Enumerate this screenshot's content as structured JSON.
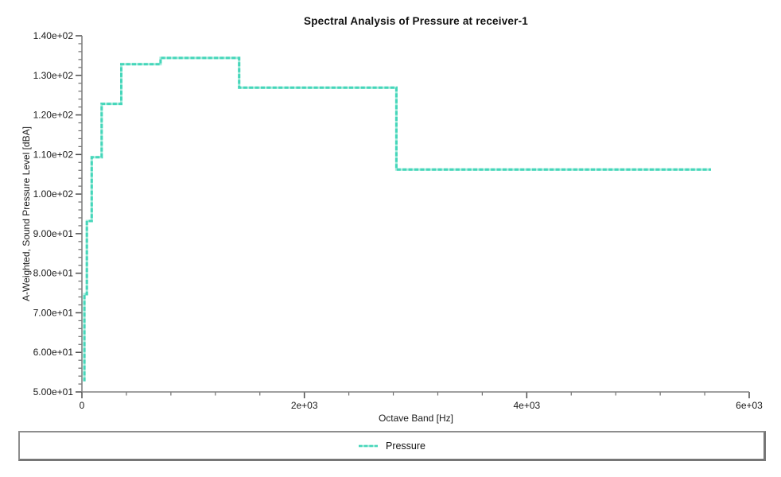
{
  "chart_data": {
    "type": "step",
    "title": "Spectral Analysis of Pressure at receiver-1",
    "xlabel": "Octave Band [Hz]",
    "ylabel": "A-Weighted, Sound Pressure Level [dBA]",
    "xlim": [
      0,
      6000
    ],
    "ylim": [
      50,
      140
    ],
    "grid": false,
    "legend_position": "bottom",
    "axis_color": "#808080",
    "major_tick_color": "#4d4d4d",
    "minor_tick_color": "#6f6f6f",
    "x_major_ticks": [
      {
        "value": 0,
        "label": "0"
      },
      {
        "value": 2000,
        "label": "2e+03"
      },
      {
        "value": 4000,
        "label": "4e+03"
      },
      {
        "value": 6000,
        "label": "6e+03"
      }
    ],
    "y_major_ticks": [
      {
        "value": 50,
        "label": "5.00e+01"
      },
      {
        "value": 60,
        "label": "6.00e+01"
      },
      {
        "value": 70,
        "label": "7.00e+01"
      },
      {
        "value": 80,
        "label": "8.00e+01"
      },
      {
        "value": 90,
        "label": "9.00e+01"
      },
      {
        "value": 100,
        "label": "1.00e+02"
      },
      {
        "value": 110,
        "label": "1.10e+02"
      },
      {
        "value": 120,
        "label": "1.20e+02"
      },
      {
        "value": 130,
        "label": "1.30e+02"
      },
      {
        "value": 140,
        "label": "1.40e+02"
      }
    ],
    "x_minor_step": 400,
    "y_minor_step": 2,
    "series": [
      {
        "name": "Pressure",
        "color": "#45d6ba",
        "color_light": "#a5ecdc",
        "line_style": "dashed",
        "line_width": 3,
        "band_edges_hz": [
          11,
          22,
          44,
          88,
          177,
          354,
          707,
          1414,
          2828,
          5657
        ],
        "band_centers_hz": [
          16,
          31.5,
          63,
          125,
          250,
          500,
          1000,
          2000,
          4000
        ],
        "values_dba": [
          53.0,
          74.7,
          93.2,
          109.3,
          122.8,
          132.8,
          134.4,
          126.9,
          106.2
        ]
      }
    ]
  },
  "legend": {
    "items": [
      {
        "label": "Pressure",
        "color": "#45d6ba"
      }
    ]
  }
}
